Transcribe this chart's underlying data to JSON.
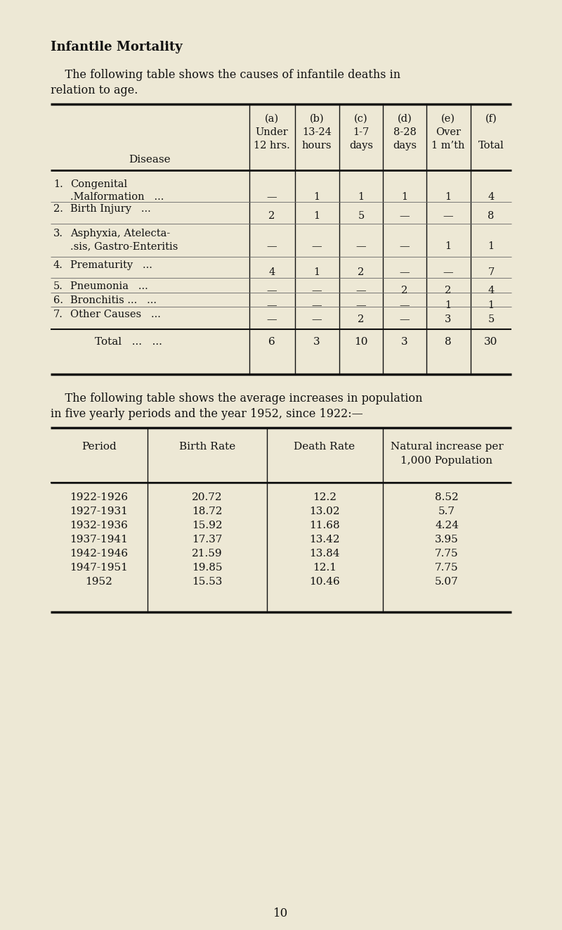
{
  "bg_color": "#ede8d5",
  "title": "Infantile Mortality",
  "intro1": "    The following table shows the causes of infantile deaths in",
  "intro2": "relation to age.",
  "table1_header_cols": [
    [
      "(a)",
      "Under",
      "12 hrs."
    ],
    [
      "(b)",
      "13-24",
      "hours"
    ],
    [
      "(c)",
      "1-7",
      "days"
    ],
    [
      "(d)",
      "8-28",
      "days"
    ],
    [
      "(e)",
      "Over",
      "1 m’th"
    ],
    [
      "(f)",
      "",
      "Total"
    ]
  ],
  "table1_rows": [
    {
      "num": "1.",
      "line1": "Congenital",
      "line2": ".Malformation   ...",
      "a": "—",
      "b": "1",
      "c": "1",
      "d": "1",
      "e": "1",
      "f": "4"
    },
    {
      "num": "2.",
      "line1": "Birth Injury   ...",
      "line2": "",
      "a": "2",
      "b": "1",
      "c": "5",
      "d": "—",
      "e": "—",
      "f": "8"
    },
    {
      "num": "3.",
      "line1": "Asphyxia, Atelecta-",
      "line2": ".sis, Gastro-Enteritis",
      "a": "—",
      "b": "—",
      "c": "—",
      "d": "—",
      "e": "1",
      "f": "1"
    },
    {
      "num": "4.",
      "line1": "Prematurity   ...",
      "line2": "",
      "a": "4",
      "b": "1",
      "c": "2",
      "d": "—",
      "e": "—",
      "f": "7"
    },
    {
      "num": "5.",
      "line1": "Pneumonia   ...",
      "line2": "",
      "a": "—",
      "b": "—",
      "c": "—",
      "d": "2",
      "e": "2",
      "f": "4"
    },
    {
      "num": "6.",
      "line1": "Bronchitis ...   ...",
      "line2": "",
      "a": "—",
      "b": "—",
      "c": "—",
      "d": "—",
      "e": "1",
      "f": "1"
    },
    {
      "num": "7.",
      "line1": "Other Causes   ...",
      "line2": "",
      "a": "—",
      "b": "—",
      "c": "2",
      "d": "—",
      "e": "3",
      "f": "5"
    }
  ],
  "table1_total": [
    "6",
    "3",
    "10",
    "3",
    "8",
    "30"
  ],
  "intro3": "    The following table shows the average increases in population",
  "intro4": "in five yearly periods and the year 1952, since 1922:—",
  "table2_rows": [
    [
      "1922-1926",
      "20.72",
      "12.2",
      "8.52"
    ],
    [
      "1927-1931",
      "18.72",
      "13.02",
      "5.7"
    ],
    [
      "1932-1936",
      "15.92",
      "11.68",
      "4.24"
    ],
    [
      "1937-1941",
      "17.37",
      "13.42",
      "3.95"
    ],
    [
      "1942-1946",
      "21.59",
      "13.84",
      "7.75"
    ],
    [
      "1947-1951",
      "19.85",
      "12.1",
      "7.75"
    ],
    [
      "1952",
      "15.53",
      "10.46",
      "5.07"
    ]
  ],
  "page_num": "10"
}
